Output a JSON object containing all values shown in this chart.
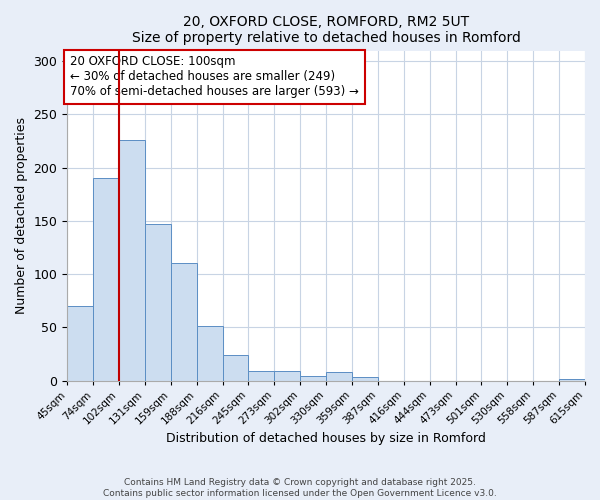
{
  "title": "20, OXFORD CLOSE, ROMFORD, RM2 5UT",
  "subtitle": "Size of property relative to detached houses in Romford",
  "xlabel": "Distribution of detached houses by size in Romford",
  "ylabel": "Number of detached properties",
  "bar_values": [
    70,
    190,
    226,
    147,
    110,
    51,
    24,
    9,
    9,
    4,
    8,
    3,
    0,
    0,
    0,
    0,
    0,
    0,
    0,
    1
  ],
  "bar_labels": [
    "45sqm",
    "74sqm",
    "102sqm",
    "131sqm",
    "159sqm",
    "188sqm",
    "216sqm",
    "245sqm",
    "273sqm",
    "302sqm",
    "330sqm",
    "359sqm",
    "387sqm",
    "416sqm",
    "444sqm",
    "473sqm",
    "501sqm",
    "530sqm",
    "558sqm",
    "587sqm",
    "615sqm"
  ],
  "bar_color": "#ccddf0",
  "bar_edge_color": "#5b8ec4",
  "vline_x": 2,
  "vline_color": "#c00000",
  "ylim": [
    0,
    310
  ],
  "yticks": [
    0,
    50,
    100,
    150,
    200,
    250,
    300
  ],
  "annotation_title": "20 OXFORD CLOSE: 100sqm",
  "annotation_line1": "← 30% of detached houses are smaller (249)",
  "annotation_line2": "70% of semi-detached houses are larger (593) →",
  "annotation_box_color": "#ffffff",
  "annotation_box_edge": "#cc0000",
  "footer1": "Contains HM Land Registry data © Crown copyright and database right 2025.",
  "footer2": "Contains public sector information licensed under the Open Government Licence v3.0.",
  "background_color": "#e8eef8",
  "plot_bg_color": "#ffffff",
  "grid_color": "#c8d4e4"
}
